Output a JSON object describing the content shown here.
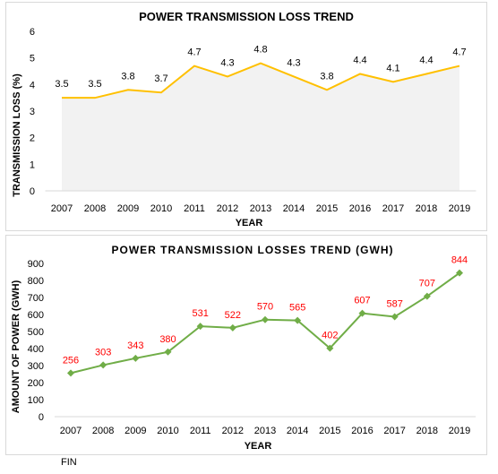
{
  "chart_data": [
    {
      "type": "area",
      "title": "POWER TRANSMISSION LOSS TREND",
      "xlabel": "YEAR",
      "ylabel": "TRANSMISSION LOSS (%)",
      "categories": [
        "2007",
        "2008",
        "2009",
        "2010",
        "2011",
        "2012",
        "2013",
        "2014",
        "2015",
        "2016",
        "2017",
        "2018",
        "2019"
      ],
      "values": [
        3.5,
        3.5,
        3.8,
        3.7,
        4.7,
        4.3,
        4.8,
        4.3,
        3.8,
        4.4,
        4.1,
        4.4,
        4.7
      ],
      "ylim": [
        0,
        6
      ],
      "yticks": [
        "0",
        "1",
        "2",
        "3",
        "4",
        "5",
        "6"
      ],
      "line_color": "#ffc000",
      "fill_color": "#f2f2f2",
      "grid": false,
      "legend": "none"
    },
    {
      "type": "line",
      "title": "POWER TRANSMISSION LOSSES TREND (GWH)",
      "xlabel": "YEAR",
      "ylabel": "AMOUNT OF POWER (GWH)",
      "categories": [
        "2007",
        "2008",
        "2009",
        "2010",
        "2011",
        "2012",
        "2013",
        "2014",
        "2015",
        "2016",
        "2017",
        "2018",
        "2019"
      ],
      "values": [
        256,
        303,
        343,
        380,
        531,
        522,
        570,
        565,
        402,
        607,
        587,
        707,
        844
      ],
      "ylim": [
        0,
        900
      ],
      "yticks": [
        "0",
        "100",
        "200",
        "300",
        "400",
        "500",
        "600",
        "700",
        "800",
        "900"
      ],
      "line_color": "#70ad47",
      "label_color": "#ff0000",
      "marker": "diamond",
      "grid": false,
      "legend": "none"
    }
  ],
  "footer": {
    "text": "FIN"
  }
}
